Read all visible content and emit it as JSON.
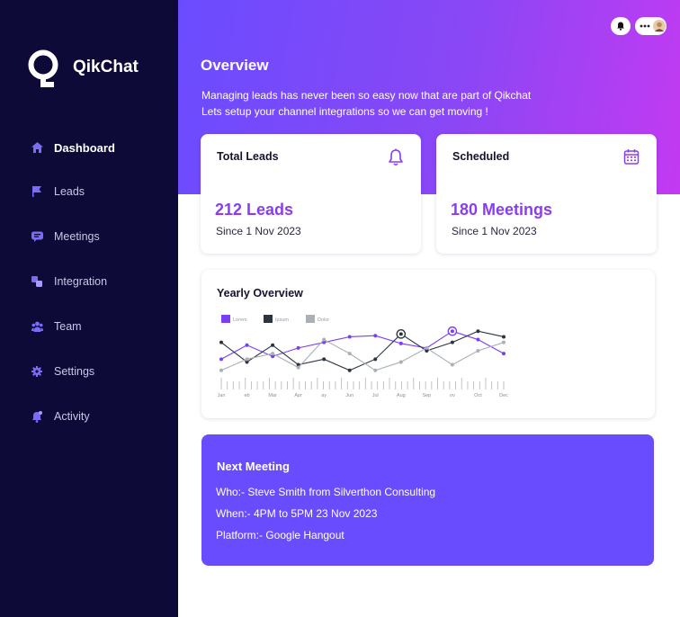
{
  "app": {
    "name": "QikChat"
  },
  "sidebar": {
    "items": [
      {
        "label": "Dashboard",
        "icon": "home-icon",
        "active": true
      },
      {
        "label": "Leads",
        "icon": "flag-icon"
      },
      {
        "label": "Meetings",
        "icon": "chat-icon"
      },
      {
        "label": "Integration",
        "icon": "integration-icon"
      },
      {
        "label": "Team",
        "icon": "team-icon"
      },
      {
        "label": "Settings",
        "icon": "gear-icon"
      },
      {
        "label": "Activity",
        "icon": "bell-icon"
      }
    ]
  },
  "header": {
    "title": "Overview",
    "subtitle_line1": "Managing leads has never been so easy now that are part of  Qikchat",
    "subtitle_line2": "Lets setup your channel integrations  so we can get moving !"
  },
  "cards": {
    "leads": {
      "label": "Total Leads",
      "value": "212 Leads",
      "since": "Since 1 Nov 2023",
      "icon": "bell-icon"
    },
    "scheduled": {
      "label": "Scheduled",
      "value": "180 Meetings",
      "since": "Since 1 Nov 2023",
      "icon": "calendar-icon"
    }
  },
  "colors": {
    "accent": "#6a4cff",
    "purple": "#8a3df0",
    "sidebar": "#0d0a38",
    "lorem": "#7a3ef4",
    "ipsum": "#2c3440",
    "dolor": "#aab0b6"
  },
  "chart_data": {
    "title": "Yearly Overview",
    "type": "line",
    "x_labels": [
      "Jan",
      "eb",
      "Mar",
      "Apr",
      "ay",
      "Jun",
      "Jul",
      "Aug",
      "Sep",
      "ov",
      "Oct",
      "Dec"
    ],
    "series": [
      {
        "name": "Lorem",
        "values": [
          5,
          7.5,
          5.5,
          7,
          8,
          9,
          9.2,
          7.8,
          7,
          10,
          8.5,
          6
        ]
      },
      {
        "name": "Ipsum",
        "values": [
          8,
          4.5,
          7.5,
          4,
          5,
          3,
          5,
          9.5,
          6.5,
          8,
          10,
          9
        ]
      },
      {
        "name": "Dolor",
        "values": [
          3,
          5,
          6,
          3.5,
          8.5,
          6,
          3,
          4.5,
          7,
          4,
          6.5,
          8
        ]
      }
    ],
    "grid": false,
    "legend": "top-left"
  },
  "next_meeting": {
    "title": "Next Meeting",
    "who": "Who:- Steve Smith from Silverthon Consulting",
    "when": "When:- 4PM to 5PM 23 Nov 2023",
    "platform": "Platform:- Google Hangout"
  }
}
